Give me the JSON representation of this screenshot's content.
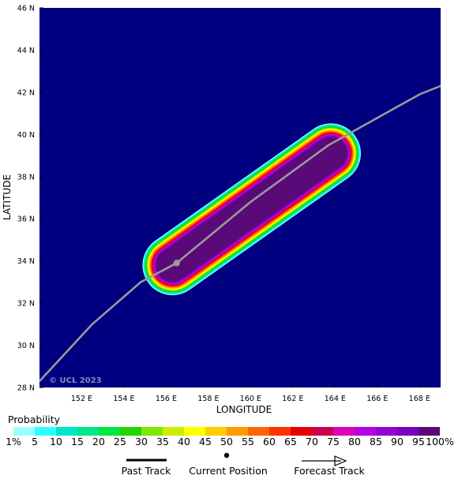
{
  "map": {
    "x_axis_title": "LONGITUDE",
    "y_axis_title": "LATITUDE",
    "x_ticks": [
      "152 E",
      "154 E",
      "156 E",
      "158 E",
      "160 E",
      "162 E",
      "164 E",
      "166 E",
      "168 E"
    ],
    "y_ticks": [
      "28 N",
      "30 N",
      "32 N",
      "34 N",
      "36 N",
      "38 N",
      "40 N",
      "42 N",
      "44 N",
      "46 N"
    ],
    "x_range": [
      150,
      169
    ],
    "y_range": [
      28,
      46
    ],
    "copyright": "© UCL 2023",
    "background_color": "#000080",
    "track_color": "#9a9a9a",
    "track": [
      [
        150.0,
        28.3
      ],
      [
        152.5,
        31.0
      ],
      [
        154.8,
        33.0
      ],
      [
        156.5,
        33.9
      ],
      [
        160.0,
        36.8
      ],
      [
        163.7,
        39.5
      ],
      [
        168.0,
        41.9
      ],
      [
        169.0,
        42.3
      ]
    ],
    "current_position": [
      156.5,
      33.9
    ],
    "swath": {
      "start": [
        156.3,
        33.8
      ],
      "end": [
        163.8,
        39.1
      ],
      "max_probability_percent": 100,
      "outer_probability_percent": 1
    }
  },
  "legend": {
    "title": "Probability",
    "labels": [
      "1%",
      "5",
      "10",
      "15",
      "20",
      "25",
      "30",
      "35",
      "40",
      "45",
      "50",
      "55",
      "60",
      "65",
      "70",
      "75",
      "80",
      "85",
      "90",
      "95",
      "100%"
    ],
    "colors": [
      "#9cffff",
      "#30ffff",
      "#00e6c8",
      "#00e68c",
      "#00e640",
      "#22d400",
      "#7ee800",
      "#ccee00",
      "#ffff00",
      "#ffcc00",
      "#ff9900",
      "#ff6600",
      "#ff3300",
      "#e60000",
      "#c8004b",
      "#dc00b4",
      "#b400e6",
      "#9600d2",
      "#7800be",
      "#5a0a78"
    ]
  },
  "key": {
    "past_track": "Past Track",
    "current_position": "Current Position",
    "forecast_track": "Forecast Track"
  }
}
